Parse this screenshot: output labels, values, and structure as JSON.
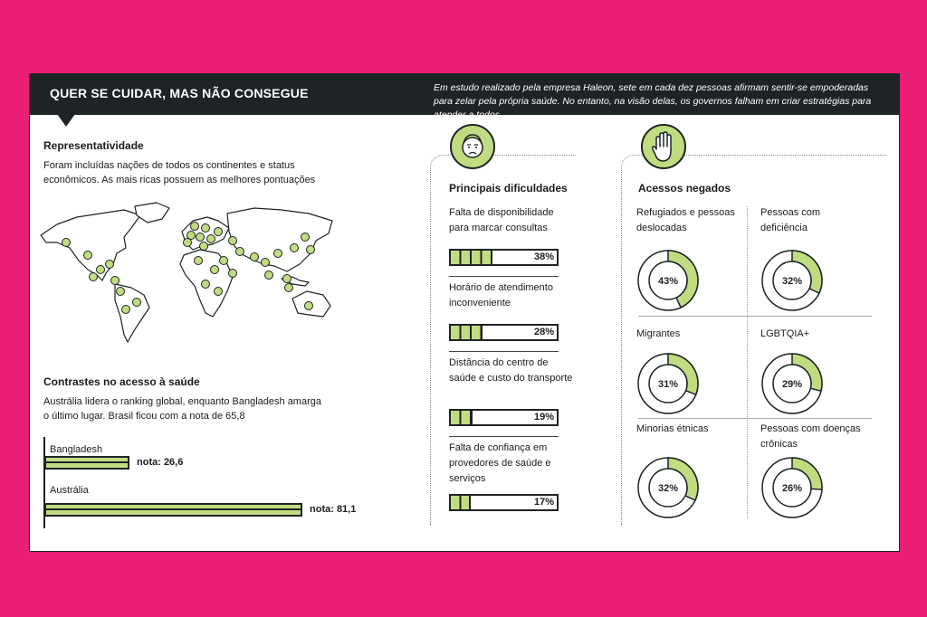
{
  "header": {
    "title": "QUER SE CUIDAR, MAS NÃO CONSEGUE",
    "subtitle": "Em estudo realizado pela empresa Haleon, sete em cada dez pessoas afirmam sentir-se empoderadas para zelar pela própria saúde. No entanto, na visão delas, os governos falham em criar estratégias para atender a todos"
  },
  "representatividade": {
    "title": "Representatividade",
    "text": "Foram incluídas nações de todos os continentes e status econômicos. As mais ricas possuem as melhores pontuações"
  },
  "contrastes": {
    "title": "Contrastes no acesso à saúde",
    "text": "Austrália lidera o ranking global, enquanto Bangladesh amarga o último lugar. Brasil ficou com a nota de 65,8"
  },
  "colors": {
    "accent": "#c0dc80",
    "dark": "#1e2326",
    "background": "#e91e74"
  },
  "icons": {
    "dificuldades": "worried-face-icon",
    "acessos": "stop-hand-icon"
  },
  "chart_data": [
    {
      "type": "bar",
      "orientation": "horizontal",
      "title": "Contrastes no acesso à saúde",
      "categories": [
        "Bangladesh",
        "Austrália"
      ],
      "values": [
        26.6,
        81.1
      ],
      "value_labels": [
        "nota: 26,6",
        "nota: 81,1"
      ],
      "xlim": [
        0,
        100
      ]
    },
    {
      "type": "bar",
      "orientation": "horizontal",
      "title": "Principais dificuldades",
      "categories": [
        "Falta de disponibilidade para marcar consultas",
        "Horário de atendimento inconveniente",
        "Distância do centro de saúde e custo do transporte",
        "Falta de confiança em provedores de saúde e serviços"
      ],
      "values": [
        38,
        28,
        19,
        17
      ],
      "value_labels": [
        "38%",
        "28%",
        "19%",
        "17%"
      ],
      "xlim": [
        0,
        100
      ]
    },
    {
      "type": "pie",
      "title": "Acessos negados",
      "categories": [
        "Refugiados e pessoas deslocadas",
        "Pessoas com deficiência",
        "Migrantes",
        "LGBTQIA+",
        "Minorias étnicas",
        "Pessoas com doenças crônicas"
      ],
      "values": [
        43,
        32,
        31,
        29,
        32,
        26
      ],
      "value_labels": [
        "43%",
        "32%",
        "31%",
        "29%",
        "32%",
        "26%"
      ]
    }
  ]
}
